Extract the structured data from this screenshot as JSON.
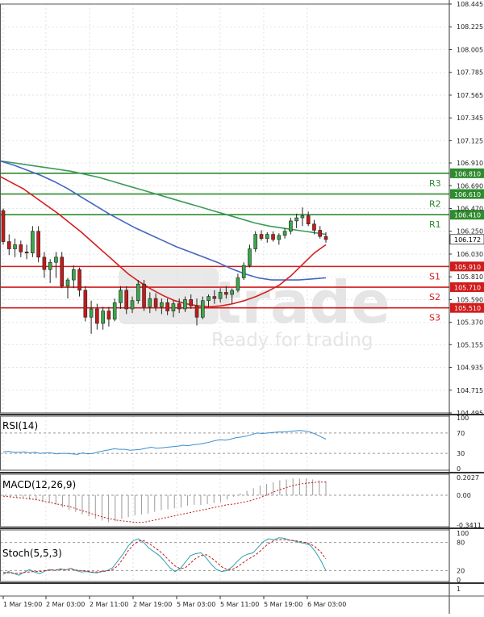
{
  "chart_data": [
    {
      "panel": "price",
      "type": "candlestick",
      "ylim": [
        104.495,
        108.445
      ],
      "y_ticks": [
        "108.445",
        "108.225",
        "108.005",
        "107.785",
        "107.565",
        "107.345",
        "107.125",
        "106.910",
        "106.690",
        "106.470",
        "106.250",
        "106.030",
        "105.810",
        "105.590",
        "105.370",
        "105.155",
        "104.935",
        "104.715",
        "104.495"
      ],
      "x_ticks": [
        "1 Mar 19:00",
        "2 Mar 03:00",
        "2 Mar 11:00",
        "2 Mar 19:00",
        "5 Mar 03:00",
        "5 Mar 11:00",
        "5 Mar 19:00",
        "6 Mar 03:00"
      ],
      "current_price": "106.172",
      "levels": [
        {
          "label": "R3",
          "value": "106.810",
          "color": "#2e8b2e"
        },
        {
          "label": "R2",
          "value": "106.610",
          "color": "#2e8b2e"
        },
        {
          "label": "R1",
          "value": "106.410",
          "color": "#2e8b2e"
        },
        {
          "label": "S1",
          "value": "105.910",
          "color": "#d01c1c"
        },
        {
          "label": "S2",
          "value": "105.710",
          "color": "#d01c1c"
        },
        {
          "label": "S3",
          "value": "105.510",
          "color": "#d01c1c"
        }
      ],
      "candles": [
        [
          106.45,
          106.47,
          106.12,
          106.15
        ],
        [
          106.15,
          106.22,
          106.02,
          106.08
        ],
        [
          106.08,
          106.18,
          106.0,
          106.12
        ],
        [
          106.12,
          106.16,
          106.0,
          106.05
        ],
        [
          106.05,
          106.12,
          105.98,
          106.04
        ],
        [
          106.04,
          106.3,
          106.0,
          106.25
        ],
        [
          106.25,
          106.3,
          105.95,
          106.0
        ],
        [
          106.0,
          106.05,
          105.8,
          105.88
        ],
        [
          105.88,
          105.98,
          105.75,
          105.95
        ],
        [
          105.95,
          106.05,
          105.8,
          106.0
        ],
        [
          106.0,
          106.05,
          105.7,
          105.72
        ],
        [
          105.72,
          105.8,
          105.6,
          105.78
        ],
        [
          105.78,
          105.92,
          105.7,
          105.88
        ],
        [
          105.88,
          105.9,
          105.62,
          105.68
        ],
        [
          105.68,
          105.72,
          105.38,
          105.42
        ],
        [
          105.42,
          105.58,
          105.26,
          105.5
        ],
        [
          105.5,
          105.55,
          105.3,
          105.36
        ],
        [
          105.36,
          105.52,
          105.3,
          105.48
        ],
        [
          105.48,
          105.52,
          105.33,
          105.4
        ],
        [
          105.4,
          105.6,
          105.38,
          105.56
        ],
        [
          105.56,
          105.72,
          105.5,
          105.68
        ],
        [
          105.68,
          105.72,
          105.45,
          105.5
        ],
        [
          105.5,
          105.62,
          105.46,
          105.58
        ],
        [
          105.58,
          105.78,
          105.55,
          105.74
        ],
        [
          105.74,
          105.78,
          105.48,
          105.52
        ],
        [
          105.52,
          105.66,
          105.46,
          105.6
        ],
        [
          105.6,
          105.65,
          105.48,
          105.52
        ],
        [
          105.52,
          105.6,
          105.45,
          105.56
        ],
        [
          105.56,
          105.6,
          105.44,
          105.48
        ],
        [
          105.48,
          105.58,
          105.42,
          105.55
        ],
        [
          105.55,
          105.6,
          105.46,
          105.5
        ],
        [
          105.5,
          105.62,
          105.47,
          105.59
        ],
        [
          105.59,
          105.64,
          105.5,
          105.53
        ],
        [
          105.53,
          105.6,
          105.34,
          105.42
        ],
        [
          105.42,
          105.62,
          105.4,
          105.58
        ],
        [
          105.58,
          105.64,
          105.52,
          105.62
        ],
        [
          105.62,
          105.68,
          105.55,
          105.6
        ],
        [
          105.6,
          105.7,
          105.56,
          105.66
        ],
        [
          105.66,
          105.72,
          105.6,
          105.64
        ],
        [
          105.64,
          105.7,
          105.55,
          105.68
        ],
        [
          105.68,
          105.84,
          105.66,
          105.8
        ],
        [
          105.8,
          105.95,
          105.78,
          105.92
        ],
        [
          105.92,
          106.12,
          105.9,
          106.08
        ],
        [
          106.08,
          106.25,
          106.05,
          106.22
        ],
        [
          106.22,
          106.26,
          106.16,
          106.18
        ],
        [
          106.18,
          106.24,
          106.14,
          106.22
        ],
        [
          106.22,
          106.25,
          106.15,
          106.17
        ],
        [
          106.17,
          106.23,
          106.12,
          106.21
        ],
        [
          106.21,
          106.28,
          106.18,
          106.25
        ],
        [
          106.25,
          106.38,
          106.22,
          106.35
        ],
        [
          106.35,
          106.42,
          106.28,
          106.38
        ],
        [
          106.38,
          106.48,
          106.3,
          106.4
        ],
        [
          106.4,
          106.44,
          106.3,
          106.32
        ],
        [
          106.32,
          106.36,
          106.22,
          106.26
        ],
        [
          106.26,
          106.3,
          106.18,
          106.2
        ],
        [
          106.2,
          106.24,
          106.14,
          106.17
        ]
      ],
      "ma_red": [
        106.78,
        106.72,
        106.66,
        106.58,
        106.5,
        106.42,
        106.33,
        106.24,
        106.14,
        106.04,
        105.94,
        105.84,
        105.76,
        105.69,
        105.63,
        105.58,
        105.55,
        105.53,
        105.52,
        105.53,
        105.55,
        105.58,
        105.62,
        105.67,
        105.73,
        105.82,
        105.93,
        106.04,
        106.12
      ],
      "ma_blue": [
        106.93,
        106.89,
        106.84,
        106.79,
        106.73,
        106.66,
        106.58,
        106.5,
        106.42,
        106.35,
        106.28,
        106.22,
        106.16,
        106.1,
        106.05,
        106.0,
        105.95,
        105.89,
        105.84,
        105.8,
        105.78,
        105.78,
        105.78,
        105.79,
        105.8
      ],
      "ma_green": [
        106.93,
        106.91,
        106.89,
        106.87,
        106.85,
        106.83,
        106.8,
        106.77,
        106.73,
        106.69,
        106.65,
        106.61,
        106.57,
        106.53,
        106.49,
        106.45,
        106.41,
        106.37,
        106.33,
        106.3,
        106.28,
        106.26,
        106.24,
        106.22
      ],
      "watermark": {
        "text": "trade",
        "tagline": "Ready for trading"
      }
    },
    {
      "panel": "rsi",
      "type": "line",
      "label": "RSI(14)",
      "ylim": [
        0,
        100
      ],
      "y_ticks": [
        "100",
        "70",
        "30",
        "0"
      ],
      "values": [
        33,
        34,
        32,
        32,
        33,
        31,
        32,
        30,
        31,
        31,
        29,
        30,
        30,
        29,
        28,
        31,
        29,
        30,
        33,
        35,
        37,
        39,
        38,
        38,
        36,
        37,
        38,
        40,
        42,
        40,
        41,
        42,
        43,
        44,
        46,
        45,
        47,
        48,
        50,
        52,
        55,
        57,
        56,
        58,
        61,
        62,
        64,
        67,
        70,
        69,
        70,
        71,
        72,
        72,
        73,
        74,
        75,
        74,
        72,
        68,
        63,
        58
      ]
    },
    {
      "panel": "macd",
      "type": "bar+line",
      "label": "MACD(12,26,9)",
      "ylim": [
        -0.3411,
        0.2027
      ],
      "y_ticks": [
        "0.2027",
        "0.00",
        "-0.3411"
      ],
      "histogram": [
        -0.01,
        -0.02,
        -0.03,
        -0.03,
        -0.05,
        -0.06,
        -0.08,
        -0.09,
        -0.11,
        -0.14,
        -0.17,
        -0.19,
        -0.22,
        -0.24,
        -0.27,
        -0.29,
        -0.31,
        -0.3,
        -0.27,
        -0.25,
        -0.23,
        -0.22,
        -0.21,
        -0.19,
        -0.17,
        -0.16,
        -0.15,
        -0.14,
        -0.12,
        -0.11,
        -0.11,
        -0.1,
        -0.09,
        -0.08,
        -0.05,
        -0.02,
        0.02,
        0.05,
        0.08,
        0.11,
        0.13,
        0.15,
        0.17,
        0.18,
        0.19,
        0.19,
        0.19,
        0.18,
        0.17,
        0.16
      ],
      "signal": [
        -0.01,
        -0.02,
        -0.03,
        -0.04,
        -0.05,
        -0.07,
        -0.09,
        -0.11,
        -0.13,
        -0.16,
        -0.19,
        -0.22,
        -0.25,
        -0.27,
        -0.29,
        -0.3,
        -0.31,
        -0.31,
        -0.29,
        -0.27,
        -0.25,
        -0.23,
        -0.21,
        -0.19,
        -0.17,
        -0.15,
        -0.13,
        -0.11,
        -0.1,
        -0.08,
        -0.06,
        -0.03,
        0.01,
        0.05,
        0.08,
        0.11,
        0.13,
        0.14,
        0.15,
        0.15
      ]
    },
    {
      "panel": "stoch",
      "type": "line",
      "label": "Stoch(5,5,3)",
      "ylim": [
        0,
        100
      ],
      "y_ticks": [
        "100",
        "80",
        "20",
        "0"
      ],
      "k": [
        12,
        18,
        14,
        10,
        16,
        22,
        17,
        13,
        19,
        22,
        20,
        24,
        21,
        25,
        20,
        17,
        18,
        16,
        15,
        18,
        20,
        26,
        40,
        55,
        72,
        84,
        88,
        80,
        68,
        60,
        52,
        40,
        26,
        18,
        24,
        38,
        52,
        56,
        58,
        47,
        33,
        22,
        18,
        20,
        28,
        40,
        50,
        55,
        58,
        70,
        82,
        88,
        86,
        90,
        89,
        85,
        83,
        80,
        78,
        74,
        60,
        42,
        20
      ],
      "d": [
        16,
        15,
        14,
        14,
        16,
        17,
        18,
        18,
        20,
        21,
        21,
        22,
        22,
        23,
        21,
        20,
        19,
        17,
        17,
        18,
        19,
        22,
        30,
        45,
        62,
        75,
        83,
        84,
        78,
        70,
        62,
        52,
        40,
        30,
        24,
        26,
        36,
        46,
        52,
        54,
        47,
        38,
        28,
        22,
        22,
        28,
        36,
        44,
        50,
        58,
        68,
        78,
        84,
        86,
        86,
        85,
        84,
        82,
        80,
        77,
        70,
        60,
        45
      ]
    }
  ]
}
